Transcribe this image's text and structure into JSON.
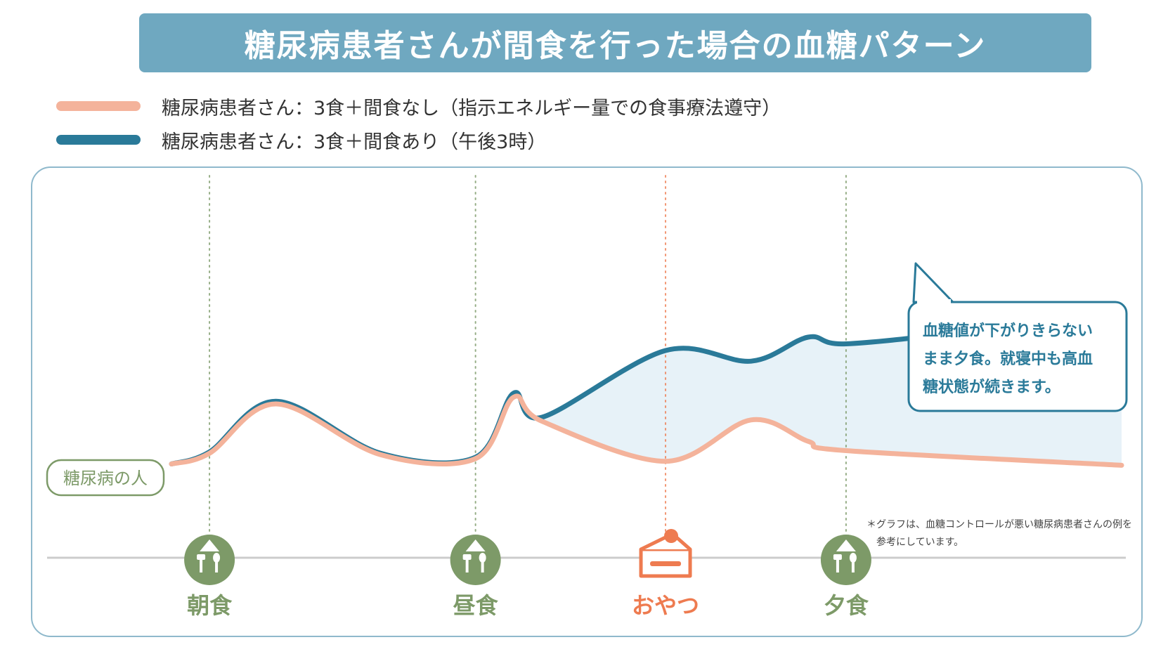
{
  "title": "糖尿病患者さんが間食を行った場合の血糖パターン",
  "legend": [
    {
      "label": "糖尿病患者さん：3食＋間食なし（指示エネルギー量での食事療法遵守）",
      "color": "#f4b39b"
    },
    {
      "label": "糖尿病患者さん：3食＋間食あり（午後3時）",
      "color": "#2a7a99"
    }
  ],
  "person_label": "糖尿病の人",
  "callout": {
    "lines": [
      "血糖値が下がりきらない",
      "まま夕食。就寝中も高血",
      "糖状態が続きます。"
    ]
  },
  "note_lines": [
    "＊グラフは、血糖コントロールが悪い糖尿病患者さんの例を",
    "参考にしています。"
  ],
  "events": [
    {
      "label": "朝食",
      "icon": "meal-icon",
      "color": "#7d9a68"
    },
    {
      "label": "昼食",
      "icon": "meal-icon",
      "color": "#7d9a68"
    },
    {
      "label": "おやつ",
      "icon": "cake-icon",
      "color": "#ee7b50"
    },
    {
      "label": "夕食",
      "icon": "meal-icon",
      "color": "#7d9a68"
    }
  ],
  "colors": {
    "title_bg": "#6fa8c0",
    "frame": "#8fb9cc",
    "no_snack": "#f4b39b",
    "with_snack": "#2a7a99",
    "fill": "#e7f2f8",
    "meal": "#7d9a68",
    "snack": "#ee7b50"
  },
  "chart_data": {
    "type": "line",
    "title": "糖尿病患者さんが間食を行った場合の血糖パターン",
    "xlabel": "",
    "ylabel": "",
    "x_events": [
      "朝食",
      "昼食",
      "おやつ",
      "夕食"
    ],
    "y_scale": "qualitative (no numeric axis shown)",
    "grid": false,
    "legend_position": "top-left",
    "series": [
      {
        "name": "糖尿病患者さん：3食＋間食なし（指示エネルギー量での食事療法遵守）",
        "x": [
          0.0,
          0.04,
          0.11,
          0.22,
          0.32,
          0.36,
          0.39,
          0.52,
          0.61,
          0.67,
          0.71,
          1.0
        ],
        "y": [
          0.05,
          0.13,
          0.5,
          0.12,
          0.09,
          0.55,
          0.37,
          0.07,
          0.38,
          0.22,
          0.15,
          0.04
        ]
      },
      {
        "name": "糖尿病患者さん：3食＋間食あり（午後3時）",
        "x": [
          0.0,
          0.04,
          0.11,
          0.22,
          0.32,
          0.36,
          0.39,
          0.52,
          0.61,
          0.67,
          0.71,
          0.85,
          1.0
        ],
        "y": [
          0.05,
          0.14,
          0.52,
          0.13,
          0.1,
          0.58,
          0.4,
          0.9,
          0.82,
          1.0,
          0.95,
          1.05,
          1.18
        ]
      }
    ]
  }
}
